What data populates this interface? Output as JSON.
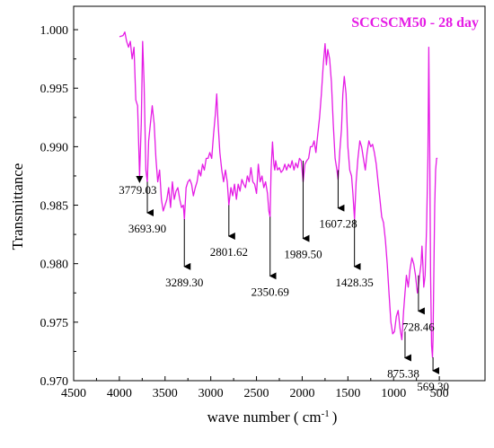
{
  "chart_data": {
    "type": "line",
    "title": "SCCSCM50 - 28 day",
    "xlabel": "wave number ( cm",
    "xlabel_sup": "-1",
    "xlabel_end": ")",
    "ylabel": "Transmittance",
    "xlim": [
      4500,
      0
    ],
    "ylim": [
      0.97,
      1.002
    ],
    "x_ticks": [
      4500,
      4000,
      3500,
      3000,
      2500,
      2000,
      1500,
      1000,
      500
    ],
    "y_ticks": [
      "0.970",
      "0.975",
      "0.980",
      "0.985",
      "0.990",
      "0.995",
      "1.000"
    ],
    "y_tick_values": [
      0.97,
      0.975,
      0.98,
      0.985,
      0.99,
      0.995,
      1.0
    ],
    "colors": {
      "line": "#e51ce5",
      "title": "#e51ce5",
      "axis": "#000000"
    },
    "series": [
      {
        "x": [
          3999,
          3960,
          3940,
          3920,
          3900,
          3880,
          3860,
          3840,
          3820,
          3800,
          3779,
          3760,
          3745,
          3730,
          3710,
          3694,
          3680,
          3660,
          3640,
          3620,
          3600,
          3580,
          3560,
          3540,
          3520,
          3500,
          3480,
          3460,
          3440,
          3420,
          3400,
          3380,
          3360,
          3340,
          3320,
          3300,
          3289,
          3270,
          3250,
          3230,
          3210,
          3190,
          3170,
          3150,
          3130,
          3110,
          3090,
          3070,
          3050,
          3030,
          3010,
          2990,
          2970,
          2950,
          2935,
          2920,
          2900,
          2880,
          2860,
          2840,
          2820,
          2802,
          2780,
          2760,
          2740,
          2720,
          2700,
          2680,
          2660,
          2640,
          2620,
          2600,
          2580,
          2560,
          2540,
          2520,
          2500,
          2480,
          2460,
          2440,
          2420,
          2400,
          2380,
          2365,
          2351,
          2340,
          2325,
          2310,
          2300,
          2290,
          2270,
          2250,
          2230,
          2210,
          2190,
          2170,
          2150,
          2130,
          2110,
          2090,
          2070,
          2050,
          2030,
          2010,
          1990,
          1970,
          1950,
          1930,
          1910,
          1890,
          1870,
          1850,
          1830,
          1810,
          1790,
          1770,
          1750,
          1735,
          1720,
          1700,
          1680,
          1660,
          1640,
          1620,
          1607,
          1590,
          1570,
          1555,
          1540,
          1520,
          1500,
          1480,
          1460,
          1445,
          1428,
          1410,
          1390,
          1370,
          1350,
          1330,
          1310,
          1290,
          1270,
          1250,
          1230,
          1210,
          1190,
          1170,
          1150,
          1130,
          1110,
          1090,
          1070,
          1050,
          1030,
          1010,
          990,
          970,
          950,
          930,
          910,
          890,
          875,
          860,
          840,
          820,
          800,
          780,
          760,
          740,
          728,
          715,
          700,
          690,
          680,
          670,
          655,
          640,
          625,
          615,
          605,
          595,
          585,
          575,
          569,
          560,
          550,
          540,
          530,
          520
        ],
        "y": [
          0.9994,
          0.9995,
          0.9998,
          0.999,
          0.9985,
          0.999,
          0.9975,
          0.9985,
          0.994,
          0.9935,
          0.9875,
          0.992,
          0.999,
          0.9955,
          0.988,
          0.987,
          0.9905,
          0.992,
          0.9935,
          0.992,
          0.989,
          0.987,
          0.988,
          0.9855,
          0.9845,
          0.985,
          0.9855,
          0.9865,
          0.9848,
          0.987,
          0.9855,
          0.9862,
          0.9865,
          0.9855,
          0.9848,
          0.985,
          0.9838,
          0.9865,
          0.987,
          0.9872,
          0.9868,
          0.9858,
          0.9865,
          0.987,
          0.988,
          0.9875,
          0.9885,
          0.988,
          0.989,
          0.989,
          0.9895,
          0.989,
          0.991,
          0.9928,
          0.9945,
          0.992,
          0.9895,
          0.988,
          0.987,
          0.988,
          0.987,
          0.985,
          0.9865,
          0.9858,
          0.9868,
          0.9855,
          0.9868,
          0.9862,
          0.9872,
          0.9868,
          0.9865,
          0.9875,
          0.987,
          0.9882,
          0.987,
          0.9868,
          0.986,
          0.9885,
          0.987,
          0.9875,
          0.9865,
          0.987,
          0.986,
          0.9845,
          0.984,
          0.988,
          0.9904,
          0.9885,
          0.988,
          0.9888,
          0.988,
          0.9882,
          0.9878,
          0.988,
          0.9885,
          0.988,
          0.9885,
          0.9882,
          0.9888,
          0.988,
          0.9886,
          0.9882,
          0.989,
          0.9888,
          0.987,
          0.9885,
          0.9888,
          0.989,
          0.99,
          0.99,
          0.9905,
          0.9895,
          0.991,
          0.9925,
          0.9945,
          0.997,
          0.9988,
          0.997,
          0.9983,
          0.9975,
          0.9955,
          0.992,
          0.989,
          0.988,
          0.9872,
          0.9895,
          0.9915,
          0.9945,
          0.996,
          0.9945,
          0.99,
          0.988,
          0.9875,
          0.986,
          0.9838,
          0.987,
          0.989,
          0.9905,
          0.99,
          0.989,
          0.988,
          0.9895,
          0.9905,
          0.99,
          0.9902,
          0.9895,
          0.9885,
          0.987,
          0.9855,
          0.984,
          0.9835,
          0.982,
          0.98,
          0.9775,
          0.975,
          0.974,
          0.9742,
          0.9755,
          0.976,
          0.9745,
          0.9735,
          0.976,
          0.9775,
          0.979,
          0.978,
          0.9795,
          0.9805,
          0.98,
          0.979,
          0.9775,
          0.978,
          0.979,
          0.98,
          0.9815,
          0.98,
          0.978,
          0.979,
          0.983,
          0.989,
          0.9985,
          0.99,
          0.979,
          0.973,
          0.972,
          0.9735,
          0.979,
          0.985,
          0.988,
          0.989,
          0.989
        ]
      }
    ],
    "annotations": [
      {
        "label": "3779.03",
        "x": 3779,
        "y_from": 0.9875,
        "y_to": 0.9876,
        "label_anchor": "below-left"
      },
      {
        "label": "3693.90",
        "x": 3694,
        "y_from": 0.987,
        "y_to": 0.9842,
        "label_anchor": "below"
      },
      {
        "label": "3289.30",
        "x": 3289,
        "y_from": 0.9838,
        "y_to": 0.9796,
        "label_anchor": "below"
      },
      {
        "label": "2801.62",
        "x": 2802,
        "y_from": 0.985,
        "y_to": 0.9822,
        "label_anchor": "below"
      },
      {
        "label": "2350.69",
        "x": 2351,
        "y_from": 0.984,
        "y_to": 0.9788,
        "label_anchor": "below"
      },
      {
        "label": "1989.50",
        "x": 1990,
        "y_from": 0.9888,
        "y_to": 0.982,
        "label_anchor": "below"
      },
      {
        "label": "1607.28",
        "x": 1607,
        "y_from": 0.988,
        "y_to": 0.9846,
        "label_anchor": "below"
      },
      {
        "label": "1428.35",
        "x": 1428,
        "y_from": 0.9838,
        "y_to": 0.9796,
        "label_anchor": "below"
      },
      {
        "label": "875.38",
        "x": 875,
        "y_from": 0.9742,
        "y_to": 0.9718,
        "label_anchor": "below-left"
      },
      {
        "label": "728.46",
        "x": 728,
        "y_from": 0.979,
        "y_to": 0.9758,
        "label_anchor": "below"
      },
      {
        "label": "569.30",
        "x": 569,
        "y_from": 0.972,
        "y_to": 0.9707,
        "label_anchor": "below"
      }
    ]
  }
}
